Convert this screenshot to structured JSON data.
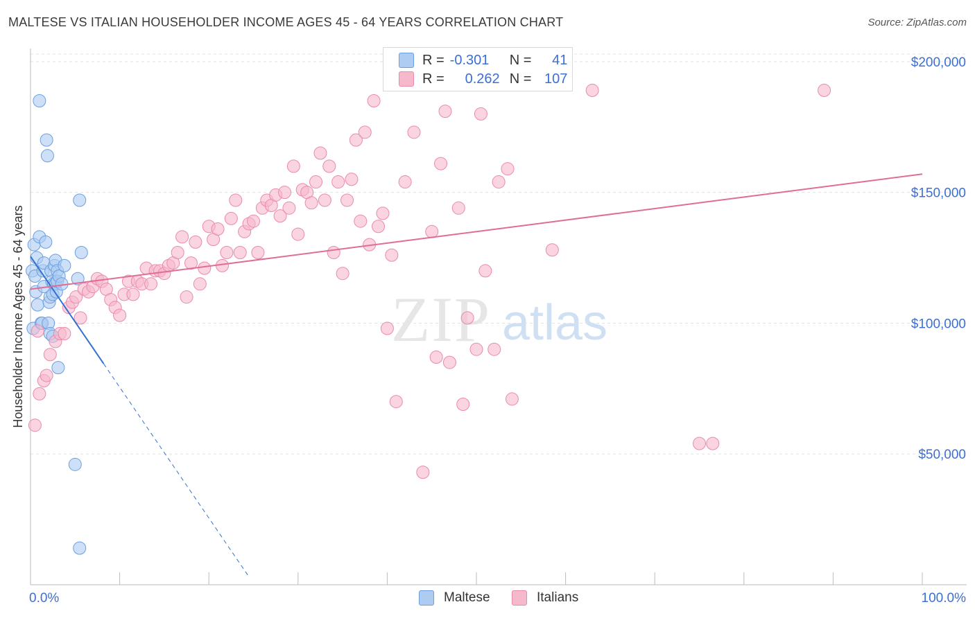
{
  "title": "MALTESE VS ITALIAN HOUSEHOLDER INCOME AGES 45 - 64 YEARS CORRELATION CHART",
  "source": "Source: ZipAtlas.com",
  "watermark": {
    "zip": "ZIP",
    "atlas": "atlas"
  },
  "legend": {
    "rows": [
      {
        "r_label": "R =",
        "r_value": "-0.301",
        "n_label": "N =",
        "n_value": "41",
        "color": "#aecbf2"
      },
      {
        "r_label": "R =",
        "r_value": "0.262",
        "n_label": "N =",
        "n_value": "107",
        "color": "#f6b8cb"
      }
    ]
  },
  "bottom_legend": {
    "items": [
      {
        "label": "Maltese",
        "color": "#aecbf2"
      },
      {
        "label": "Italians",
        "color": "#f6b8cb"
      }
    ]
  },
  "chart_data": {
    "type": "scatter",
    "title": "MALTESE VS ITALIAN HOUSEHOLDER INCOME AGES 45 - 64 YEARS CORRELATION CHART",
    "xlabel": "",
    "ylabel": "Householder Income Ages 45 - 64 years",
    "xlim": [
      0,
      100
    ],
    "ylim": [
      0,
      205000
    ],
    "x_tick_labels": [
      "0.0%",
      "100.0%"
    ],
    "y_ticks": [
      50000,
      100000,
      150000,
      200000
    ],
    "y_tick_labels": [
      "$50,000",
      "$100,000",
      "$150,000",
      "$200,000"
    ],
    "grid": true,
    "series": [
      {
        "name": "Maltese",
        "color": "#aecbf2",
        "stroke": "#6a9ee0",
        "trend_color": "#3370d0",
        "trend": {
          "x0": 0,
          "y0": 125500,
          "x1": 8.2,
          "y1": 84500,
          "dashed_to_x": 24.5
        },
        "points": [
          [
            0.2,
            120000
          ],
          [
            0.3,
            98000
          ],
          [
            0.4,
            130000
          ],
          [
            0.5,
            118000
          ],
          [
            0.6,
            112000
          ],
          [
            0.7,
            125000
          ],
          [
            0.8,
            107000
          ],
          [
            1.0,
            133000
          ],
          [
            1.0,
            185000
          ],
          [
            1.2,
            100000
          ],
          [
            1.3,
            100000
          ],
          [
            1.4,
            120000
          ],
          [
            1.5,
            123000
          ],
          [
            1.5,
            114000
          ],
          [
            1.7,
            131000
          ],
          [
            1.8,
            170000
          ],
          [
            1.9,
            164000
          ],
          [
            2.0,
            100000
          ],
          [
            2.1,
            108000
          ],
          [
            2.2,
            110000
          ],
          [
            2.2,
            96000
          ],
          [
            2.3,
            120000
          ],
          [
            2.4,
            116000
          ],
          [
            2.5,
            111000
          ],
          [
            2.5,
            95000
          ],
          [
            2.6,
            115000
          ],
          [
            2.7,
            122000
          ],
          [
            2.8,
            124000
          ],
          [
            2.8,
            115000
          ],
          [
            2.9,
            112000
          ],
          [
            3.0,
            120000
          ],
          [
            3.0,
            116000
          ],
          [
            3.1,
            83000
          ],
          [
            3.2,
            118000
          ],
          [
            3.5,
            115000
          ],
          [
            3.8,
            122000
          ],
          [
            5.0,
            46000
          ],
          [
            5.3,
            117000
          ],
          [
            5.5,
            147000
          ],
          [
            5.7,
            127000
          ],
          [
            5.5,
            14000
          ]
        ]
      },
      {
        "name": "Italians",
        "color": "#f6b8cb",
        "stroke": "#ea8aa9",
        "trend_color": "#e06d94",
        "trend": {
          "x0": 0,
          "y0": 113000,
          "x1": 100,
          "y1": 157000
        },
        "points": [
          [
            0.5,
            61000
          ],
          [
            1.0,
            73000
          ],
          [
            1.5,
            78000
          ],
          [
            1.8,
            80000
          ],
          [
            2.2,
            88000
          ],
          [
            2.8,
            93000
          ],
          [
            3.3,
            96000
          ],
          [
            3.8,
            96000
          ],
          [
            4.3,
            106000
          ],
          [
            4.7,
            108000
          ],
          [
            5.1,
            110000
          ],
          [
            5.6,
            102000
          ],
          [
            6.0,
            113000
          ],
          [
            6.5,
            112000
          ],
          [
            7.0,
            114000
          ],
          [
            7.5,
            117000
          ],
          [
            8.0,
            116000
          ],
          [
            8.5,
            113000
          ],
          [
            9.0,
            109000
          ],
          [
            9.5,
            106000
          ],
          [
            10.0,
            103000
          ],
          [
            10.5,
            111000
          ],
          [
            11.0,
            116000
          ],
          [
            11.5,
            111000
          ],
          [
            12.0,
            116000
          ],
          [
            12.5,
            115000
          ],
          [
            13.0,
            121000
          ],
          [
            13.5,
            115000
          ],
          [
            14.0,
            120000
          ],
          [
            14.5,
            120000
          ],
          [
            15.0,
            119000
          ],
          [
            15.5,
            122000
          ],
          [
            16.0,
            123000
          ],
          [
            16.5,
            127000
          ],
          [
            17.0,
            133000
          ],
          [
            17.5,
            110000
          ],
          [
            18.0,
            123000
          ],
          [
            18.5,
            131000
          ],
          [
            19.0,
            115000
          ],
          [
            19.5,
            121000
          ],
          [
            20.0,
            137000
          ],
          [
            20.5,
            132000
          ],
          [
            21.0,
            136000
          ],
          [
            21.5,
            122000
          ],
          [
            22.0,
            127000
          ],
          [
            22.5,
            140000
          ],
          [
            23.0,
            147000
          ],
          [
            23.5,
            127000
          ],
          [
            24.0,
            135000
          ],
          [
            24.5,
            138000
          ],
          [
            25.0,
            139000
          ],
          [
            25.5,
            127000
          ],
          [
            26.0,
            144000
          ],
          [
            26.5,
            147000
          ],
          [
            27.0,
            145000
          ],
          [
            27.5,
            149000
          ],
          [
            28.0,
            141000
          ],
          [
            28.5,
            150000
          ],
          [
            29.0,
            144000
          ],
          [
            29.5,
            160000
          ],
          [
            30.0,
            134000
          ],
          [
            30.5,
            151000
          ],
          [
            31.0,
            150000
          ],
          [
            31.5,
            146000
          ],
          [
            32.0,
            154000
          ],
          [
            32.5,
            165000
          ],
          [
            33.0,
            147000
          ],
          [
            33.5,
            160000
          ],
          [
            34.0,
            127000
          ],
          [
            34.5,
            154000
          ],
          [
            35.0,
            119000
          ],
          [
            35.5,
            147000
          ],
          [
            36.0,
            155000
          ],
          [
            36.5,
            170000
          ],
          [
            37.0,
            139000
          ],
          [
            37.5,
            173000
          ],
          [
            38.0,
            130000
          ],
          [
            38.5,
            185000
          ],
          [
            39.0,
            137000
          ],
          [
            39.5,
            142000
          ],
          [
            40.0,
            98000
          ],
          [
            40.5,
            126000
          ],
          [
            41.0,
            70000
          ],
          [
            42.0,
            154000
          ],
          [
            43.0,
            173000
          ],
          [
            44.0,
            43000
          ],
          [
            45.0,
            135000
          ],
          [
            45.5,
            87000
          ],
          [
            46.0,
            161000
          ],
          [
            46.5,
            181000
          ],
          [
            47.0,
            85000
          ],
          [
            48.0,
            144000
          ],
          [
            48.5,
            69000
          ],
          [
            49.0,
            102000
          ],
          [
            50.0,
            90000
          ],
          [
            50.5,
            180000
          ],
          [
            51.0,
            120000
          ],
          [
            52.0,
            90000
          ],
          [
            52.5,
            154000
          ],
          [
            53.5,
            159000
          ],
          [
            54.0,
            71000
          ],
          [
            58.5,
            128000
          ],
          [
            63.0,
            189000
          ],
          [
            75.0,
            54000
          ],
          [
            76.5,
            54000
          ],
          [
            89.0,
            189000
          ],
          [
            0.8,
            97000
          ]
        ]
      }
    ]
  }
}
